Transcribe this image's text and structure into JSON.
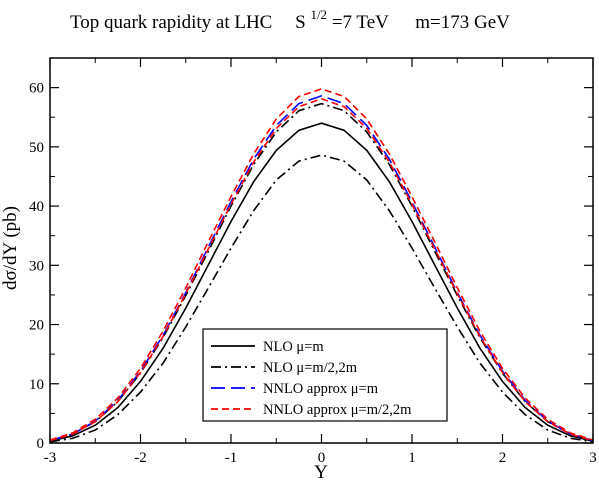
{
  "chart_data": {
    "type": "line",
    "title_parts": {
      "prefix": "Top quark rapidity at  LHC",
      "s_symbol": "S",
      "s_exponent": "1/2",
      "s_value": "=7 TeV",
      "mass": "m=173 GeV"
    },
    "xlabel": "Y",
    "ylabel": "dσ/dY (pb)",
    "xlim": [
      -3,
      3
    ],
    "ylim": [
      0,
      65
    ],
    "xticks": [
      -3,
      -2,
      -1,
      0,
      1,
      2,
      3
    ],
    "yticks": [
      0,
      10,
      20,
      30,
      40,
      50,
      60
    ],
    "grid": false,
    "legend_position": "bottom-center",
    "x": [
      -3.0,
      -2.75,
      -2.5,
      -2.25,
      -2.0,
      -1.75,
      -1.5,
      -1.25,
      -1.0,
      -0.75,
      -0.5,
      -0.25,
      0.0,
      0.25,
      0.5,
      0.75,
      1.0,
      1.25,
      1.5,
      1.75,
      2.0,
      2.25,
      2.5,
      2.75,
      3.0
    ],
    "series": [
      {
        "name": "NLO μ=m",
        "color": "#000000",
        "dash": "solid",
        "values": [
          0.3,
          1.2,
          3.0,
          6.0,
          10.4,
          16.0,
          22.8,
          30.1,
          37.4,
          44.1,
          49.4,
          52.8,
          54.0,
          52.8,
          49.4,
          44.1,
          37.4,
          30.1,
          22.8,
          16.0,
          10.4,
          6.0,
          3.0,
          1.2,
          0.3
        ]
      },
      {
        "name": "NLO μ=m/2,2m",
        "color": "#000000",
        "dash": "dashdot",
        "values": [
          0.2,
          0.8,
          2.2,
          4.8,
          8.6,
          13.5,
          19.6,
          26.2,
          32.9,
          39.2,
          44.4,
          47.6,
          48.6,
          47.6,
          44.4,
          39.2,
          32.9,
          26.2,
          19.6,
          13.5,
          8.6,
          4.8,
          2.2,
          0.8,
          0.2
        ]
      },
      {
        "name": "NLO μ=m/2,2m",
        "color": "#000000",
        "dash": "dashdot",
        "values": [
          0.4,
          1.5,
          3.6,
          7.0,
          11.8,
          17.8,
          24.9,
          32.4,
          40.0,
          47.0,
          52.5,
          56.1,
          57.3,
          56.1,
          52.5,
          47.0,
          40.0,
          32.4,
          24.9,
          17.8,
          11.8,
          7.0,
          3.6,
          1.5,
          0.4
        ]
      },
      {
        "name": "NNLO approx μ=m",
        "color": "#0000ff",
        "dash": "longdash",
        "values": [
          0.4,
          1.5,
          3.7,
          7.2,
          12.1,
          18.2,
          25.4,
          33.1,
          40.7,
          47.9,
          53.6,
          57.3,
          58.6,
          57.3,
          53.6,
          47.9,
          40.7,
          33.1,
          25.4,
          18.2,
          12.1,
          7.2,
          3.7,
          1.5,
          0.4
        ]
      },
      {
        "name": "NNLO approx μ=m/2,2m",
        "color": "#ff0000",
        "dash": "dashed",
        "values": [
          0.4,
          1.5,
          3.6,
          7.0,
          11.9,
          18.0,
          25.2,
          32.8,
          40.3,
          47.4,
          53.1,
          56.8,
          58.1,
          56.8,
          53.1,
          47.4,
          40.3,
          32.8,
          25.2,
          18.0,
          11.9,
          7.0,
          3.6,
          1.5,
          0.4
        ]
      },
      {
        "name": "NNLO approx μ=m/2,2m",
        "color": "#ff0000",
        "dash": "dashed",
        "values": [
          0.5,
          1.7,
          4.0,
          7.6,
          12.6,
          18.9,
          26.2,
          34.0,
          41.6,
          48.8,
          54.7,
          58.5,
          59.8,
          58.5,
          54.7,
          48.8,
          41.6,
          34.0,
          26.2,
          18.9,
          12.6,
          7.6,
          4.0,
          1.7,
          0.5
        ]
      }
    ],
    "legend": [
      {
        "label": "NLO μ=m",
        "color": "#000000",
        "dash": "solid"
      },
      {
        "label": "NLO μ=m/2,2m",
        "color": "#000000",
        "dash": "dashdot"
      },
      {
        "label": "NNLO approx μ=m",
        "color": "#0000ff",
        "dash": "longdash"
      },
      {
        "label": "NNLO approx μ=m/2,2m",
        "color": "#ff0000",
        "dash": "dashed"
      }
    ]
  }
}
